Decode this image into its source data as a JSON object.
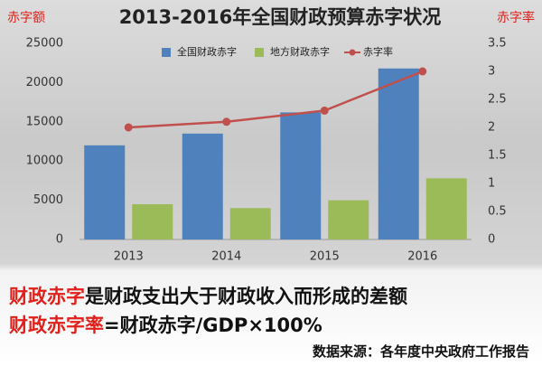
{
  "chart_data": {
    "type": "bar",
    "title": "2013-2016年全国财政预算赤字状况",
    "y_label": "赤字额",
    "y2_label": "赤字率",
    "categories": [
      "2013",
      "2014",
      "2015",
      "2016"
    ],
    "series": [
      {
        "name": "全国财政赤字",
        "color": "#4f81bd",
        "type": "bar",
        "values": [
          12000,
          13500,
          16200,
          21800
        ]
      },
      {
        "name": "地方财政赤字",
        "color": "#9bbb59",
        "type": "bar",
        "values": [
          4500,
          4000,
          5000,
          7800
        ]
      },
      {
        "name": "赤字率",
        "color": "#c0504d",
        "type": "line",
        "axis": "y2",
        "values": [
          2.0,
          2.1,
          2.3,
          3.0
        ]
      }
    ],
    "ylim": [
      0,
      25000
    ],
    "yticks": [
      0,
      5000,
      10000,
      15000,
      20000,
      25000
    ],
    "y2lim": [
      0,
      3.5
    ],
    "y2ticks": [
      0,
      0.5,
      1,
      1.5,
      2,
      2.5,
      3,
      3.5
    ],
    "legend": "top"
  },
  "footer": {
    "line1": {
      "highlight": "财政赤字",
      "rest": "是财政支出大于财政收入而形成的差额"
    },
    "line2": {
      "highlight": "财政赤字率",
      "rest": "=财政赤字/GDP×100%"
    },
    "source": "数据来源：各年度中央政府工作报告"
  }
}
